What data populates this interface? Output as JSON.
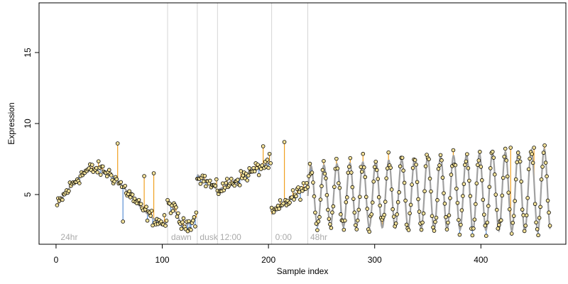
{
  "chart_data": {
    "type": "scatter",
    "xlabel": "Sample index",
    "ylabel": "Expression",
    "xlim": [
      -16,
      480
    ],
    "ylim": [
      1.5,
      18.5
    ],
    "x_ticks": [
      0,
      100,
      200,
      300,
      400
    ],
    "y_ticks": [
      5,
      10,
      15
    ],
    "grid": false,
    "legend": "none",
    "colors": {
      "fit": "#a0a0a0",
      "above": "#f0a020",
      "below": "#5b8fd4",
      "point_fill": "#f4e29a",
      "point_stroke": "#000000",
      "vline": "#d6d6d6"
    },
    "vlines": [
      105,
      133,
      152,
      203,
      237
    ],
    "annotations": [
      {
        "x": 3,
        "label": "24hr"
      },
      {
        "x": 107,
        "label": "dawn"
      },
      {
        "x": 134,
        "label": "dusk"
      },
      {
        "x": 153,
        "label": "12:00"
      },
      {
        "x": 205,
        "label": "0:00"
      },
      {
        "x": 238,
        "label": "48hr"
      }
    ],
    "segments": [
      {
        "name": "24hr",
        "x_range": [
          1,
          104
        ],
        "shape": "hump",
        "base": 4.2,
        "peak": 6.8,
        "peak_at": 0.35,
        "end": 3.0
      },
      {
        "name": "dawn",
        "x_range": [
          105,
          132
        ],
        "shape": "dip",
        "start": 4.3,
        "low": 2.8,
        "end": 3.4
      },
      {
        "name": "dusk",
        "x_range": [
          133,
          151
        ],
        "shape": "linear",
        "start": 6.4,
        "end": 5.4
      },
      {
        "name": "12:00",
        "x_range": [
          152,
          202
        ],
        "shape": "linear",
        "start": 5.3,
        "end": 7.3
      },
      {
        "name": "0:00",
        "x_range": [
          203,
          236
        ],
        "shape": "linear",
        "start": 3.6,
        "end": 5.6
      },
      {
        "name": "48hr",
        "x_range": [
          237,
          465
        ],
        "shape": "oscillation",
        "mean": 4.9,
        "amplitude": 2.1,
        "period": 12.2,
        "amp_growth": 0.4
      }
    ],
    "outliers": [
      {
        "x": 58,
        "y": 8.6
      },
      {
        "x": 215,
        "y": 8.7
      },
      {
        "x": 195,
        "y": 8.4
      },
      {
        "x": 349,
        "y": 7.8
      },
      {
        "x": 92,
        "y": 6.5
      },
      {
        "x": 83,
        "y": 6.3
      },
      {
        "x": 63,
        "y": 3.1
      },
      {
        "x": 450,
        "y": 8.3
      },
      {
        "x": 428,
        "y": 8.3
      }
    ]
  }
}
